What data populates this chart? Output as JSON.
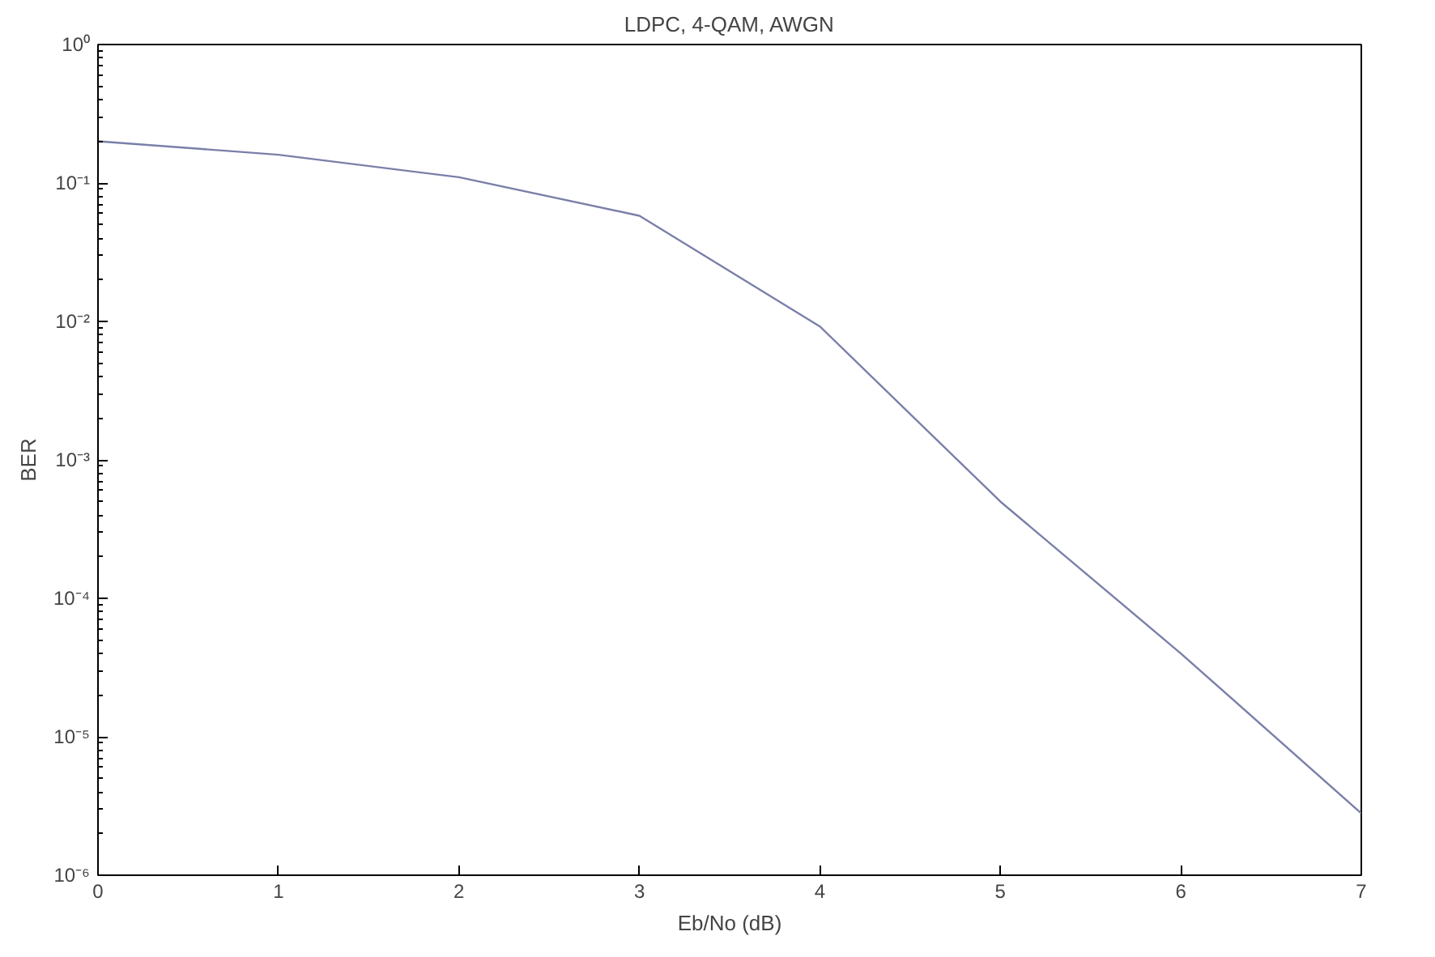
{
  "chart_data": {
    "type": "line",
    "title": "LDPC, 4-QAM, AWGN",
    "xlabel": "Eb/No (dB)",
    "ylabel": "BER",
    "x": [
      0,
      1,
      2,
      3,
      4,
      5,
      6,
      7
    ],
    "series": [
      {
        "color": "#7a7fa8",
        "values": [
          0.2,
          0.16,
          0.11,
          0.058,
          0.0092,
          0.0005,
          4e-05,
          2.8e-06
        ]
      }
    ],
    "log": "y",
    "xlim": [
      0,
      7
    ],
    "ylim": [
      1e-06,
      1
    ],
    "xticks": [
      0,
      1,
      2,
      3,
      4,
      5,
      6,
      7
    ],
    "yticks": [
      {
        "value": 1e-06,
        "label": "10⁻⁶"
      },
      {
        "value": 1e-05,
        "label": "10⁻⁵"
      },
      {
        "value": 0.0001,
        "label": "10⁻⁴"
      },
      {
        "value": 0.001,
        "label": "10⁻³"
      },
      {
        "value": 0.01,
        "label": "10⁻²"
      },
      {
        "value": 0.1,
        "label": "10⁻¹"
      },
      {
        "value": 1,
        "label": "10⁰"
      }
    ],
    "marker": "none",
    "line_style": "solid"
  }
}
